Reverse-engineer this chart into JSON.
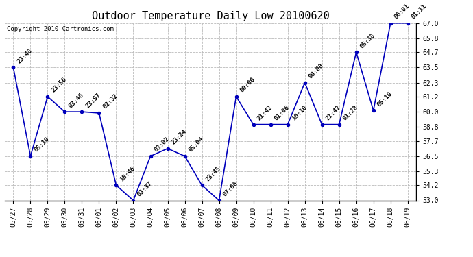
{
  "title": "Outdoor Temperature Daily Low 20100620",
  "copyright": "Copyright 2010 Cartronics.com",
  "x_labels": [
    "05/27",
    "05/28",
    "05/29",
    "05/30",
    "05/31",
    "06/01",
    "06/02",
    "06/03",
    "06/04",
    "06/05",
    "06/06",
    "06/07",
    "06/08",
    "06/09",
    "06/10",
    "06/11",
    "06/12",
    "06/13",
    "06/14",
    "06/15",
    "06/16",
    "06/17",
    "06/18",
    "06/19"
  ],
  "y_values": [
    63.5,
    56.5,
    61.2,
    60.0,
    60.0,
    59.9,
    54.2,
    53.0,
    56.5,
    57.1,
    56.5,
    54.2,
    53.0,
    61.2,
    59.0,
    59.0,
    59.0,
    62.3,
    59.0,
    59.0,
    64.7,
    60.1,
    67.0,
    67.0
  ],
  "point_labels": [
    "23:48",
    "05:10",
    "23:56",
    "03:46",
    "23:57",
    "02:32",
    "18:46",
    "03:37",
    "03:02",
    "23:24",
    "05:04",
    "23:45",
    "07:06",
    "00:00",
    "21:42",
    "01:06",
    "16:10",
    "00:00",
    "21:47",
    "01:28",
    "05:38",
    "05:10",
    "06:01",
    "01:11"
  ],
  "line_color": "#0000bb",
  "marker_color": "#0000bb",
  "bg_color": "#ffffff",
  "grid_color": "#bbbbbb",
  "ylim": [
    53.0,
    67.0
  ],
  "yticks": [
    53.0,
    54.2,
    55.3,
    56.5,
    57.7,
    58.8,
    60.0,
    61.2,
    62.3,
    63.5,
    64.7,
    65.8,
    67.0
  ],
  "title_fontsize": 11,
  "annot_fontsize": 6.5,
  "tick_fontsize": 7,
  "copyright_fontsize": 6.5
}
